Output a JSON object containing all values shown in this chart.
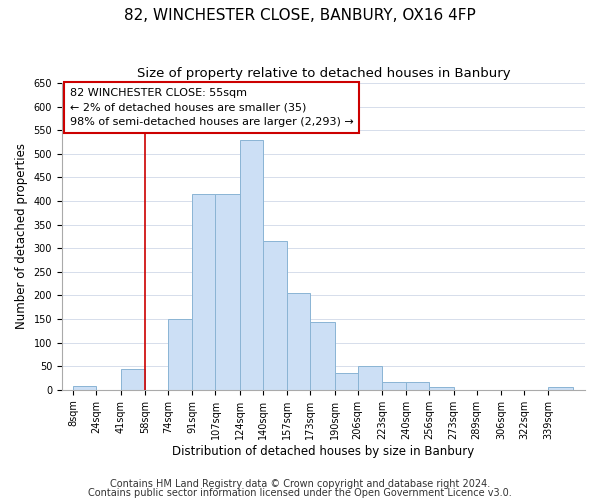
{
  "title": "82, WINCHESTER CLOSE, BANBURY, OX16 4FP",
  "subtitle": "Size of property relative to detached houses in Banbury",
  "xlabel": "Distribution of detached houses by size in Banbury",
  "ylabel": "Number of detached properties",
  "bin_edges": [
    8,
    24,
    41,
    58,
    74,
    91,
    107,
    124,
    140,
    157,
    173,
    190,
    206,
    223,
    240,
    256,
    273,
    289,
    306,
    322,
    339,
    356
  ],
  "bin_labels": [
    "8sqm",
    "24sqm",
    "41sqm",
    "58sqm",
    "74sqm",
    "91sqm",
    "107sqm",
    "124sqm",
    "140sqm",
    "157sqm",
    "173sqm",
    "190sqm",
    "206sqm",
    "223sqm",
    "240sqm",
    "256sqm",
    "273sqm",
    "289sqm",
    "306sqm",
    "322sqm",
    "339sqm"
  ],
  "bar_heights": [
    8,
    0,
    45,
    0,
    150,
    415,
    415,
    530,
    315,
    205,
    143,
    35,
    50,
    16,
    16,
    5,
    0,
    0,
    0,
    0,
    5
  ],
  "bar_color": "#ccdff5",
  "bar_edge_color": "#8ab4d4",
  "vline_x": 58,
  "vline_color": "#cc0000",
  "annotation_lines": [
    "82 WINCHESTER CLOSE: 55sqm",
    "← 2% of detached houses are smaller (35)",
    "98% of semi-detached houses are larger (2,293) →"
  ],
  "annotation_box_color": "#ffffff",
  "annotation_box_edge": "#cc0000",
  "ylim": [
    0,
    650
  ],
  "yticks": [
    0,
    50,
    100,
    150,
    200,
    250,
    300,
    350,
    400,
    450,
    500,
    550,
    600,
    650
  ],
  "footer_lines": [
    "Contains HM Land Registry data © Crown copyright and database right 2024.",
    "Contains public sector information licensed under the Open Government Licence v3.0."
  ],
  "title_fontsize": 11,
  "subtitle_fontsize": 9.5,
  "axis_fontsize": 8.5,
  "tick_fontsize": 7,
  "annotation_fontsize": 8,
  "footer_fontsize": 7
}
